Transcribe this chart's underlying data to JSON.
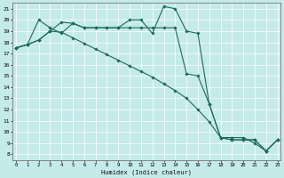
{
  "xlabel": "Humidex (Indice chaleur)",
  "xlim": [
    -0.3,
    23.3
  ],
  "ylim": [
    7.5,
    21.5
  ],
  "xticks": [
    0,
    1,
    2,
    3,
    4,
    5,
    6,
    7,
    8,
    9,
    10,
    11,
    12,
    13,
    14,
    15,
    16,
    17,
    18,
    19,
    20,
    21,
    22,
    23
  ],
  "yticks": [
    8,
    9,
    10,
    11,
    12,
    13,
    14,
    15,
    16,
    17,
    18,
    19,
    20,
    21
  ],
  "bg_color": "#c5eaea",
  "line_color": "#1b6b5c",
  "line1_x": [
    0,
    1,
    2,
    3,
    4,
    5,
    6,
    7,
    8,
    9,
    10,
    11,
    12,
    13,
    14,
    15,
    16,
    17,
    18,
    19,
    20,
    21,
    22,
    23
  ],
  "line1_y": [
    17.5,
    17.8,
    18.2,
    19.0,
    18.9,
    18.4,
    17.9,
    17.4,
    16.9,
    16.4,
    15.9,
    15.4,
    14.9,
    14.3,
    13.7,
    13.0,
    12.0,
    10.9,
    9.5,
    9.5,
    9.5,
    9.0,
    8.3,
    9.3
  ],
  "line2_x": [
    0,
    1,
    2,
    3,
    4,
    5,
    6,
    7,
    8,
    9,
    10,
    11,
    12,
    13,
    14,
    15,
    16,
    17,
    18,
    19,
    20,
    21,
    22,
    23
  ],
  "line2_y": [
    17.5,
    17.8,
    20.0,
    19.3,
    18.8,
    19.7,
    19.3,
    19.3,
    19.3,
    19.3,
    20.0,
    20.0,
    18.8,
    21.2,
    21.0,
    19.0,
    18.8,
    12.5,
    9.5,
    9.3,
    9.3,
    9.3,
    8.3,
    9.3
  ],
  "line3_x": [
    0,
    1,
    2,
    3,
    4,
    5,
    6,
    7,
    8,
    9,
    10,
    11,
    12,
    13,
    14,
    15,
    16,
    17,
    18,
    19,
    20,
    21,
    22,
    23
  ],
  "line3_y": [
    17.5,
    17.8,
    18.2,
    19.0,
    19.8,
    19.7,
    19.3,
    19.3,
    19.3,
    19.3,
    19.3,
    19.3,
    19.3,
    19.3,
    19.3,
    15.2,
    15.0,
    12.5,
    9.5,
    9.3,
    9.3,
    9.3,
    8.3,
    9.3
  ]
}
